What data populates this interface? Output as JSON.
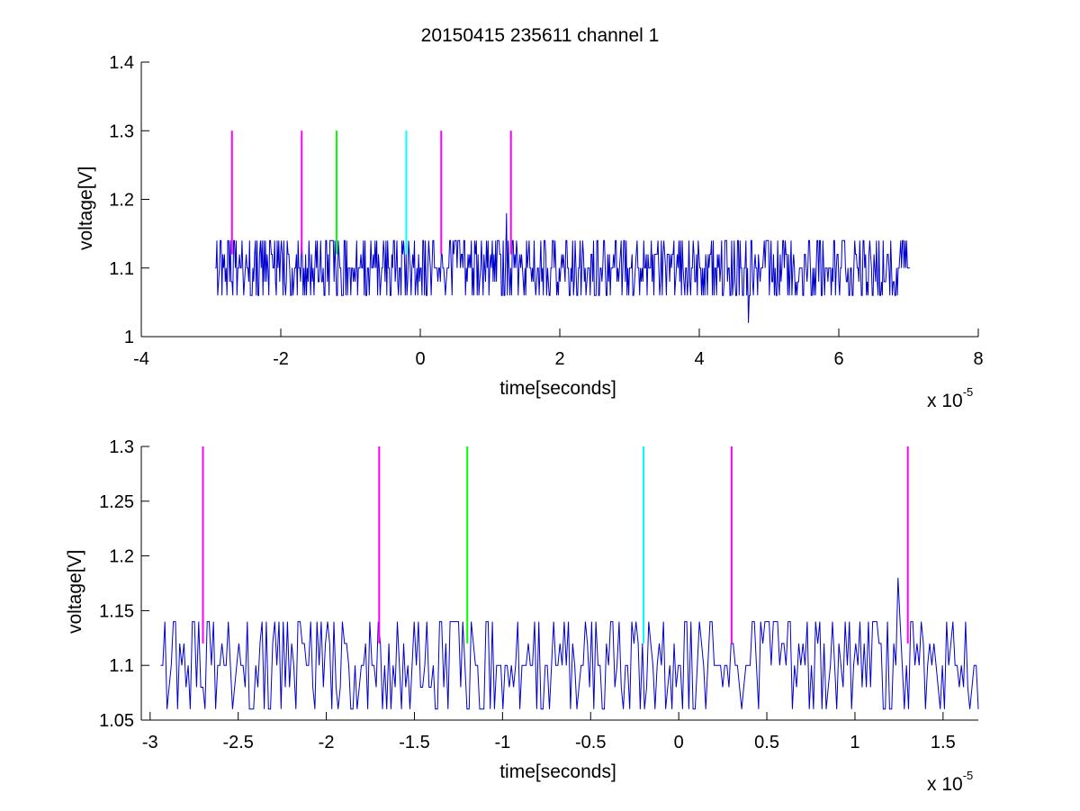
{
  "figure_title": "20150415 235611 channel 1",
  "chart_data": [
    {
      "type": "line",
      "title": "20150415 235611 channel 1",
      "xlabel": "time[seconds]",
      "ylabel": "voltage[V]",
      "x_exponent_base": "x 10",
      "x_exponent_power": "-5",
      "xlim": [
        -4,
        8
      ],
      "ylim": [
        1,
        1.4
      ],
      "xticks": [
        -4,
        -2,
        0,
        2,
        4,
        6,
        8
      ],
      "xtick_labels": [
        "-4",
        "-2",
        "0",
        "2",
        "4",
        "6",
        "8"
      ],
      "yticks": [
        1,
        1.1,
        1.2,
        1.3,
        1.4
      ],
      "ytick_labels": [
        "1",
        "1.1",
        "1.2",
        "1.3",
        "1.4"
      ],
      "grid": false,
      "signal": {
        "color": "#0000cc",
        "x_range": [
          -2.94,
          7.02
        ],
        "baseline": 1.1,
        "high": 1.14,
        "low": 1.06,
        "spikes": [
          {
            "x": 1.24,
            "y": 1.18
          },
          {
            "x": 4.7,
            "y": 1.02
          }
        ]
      },
      "markers": [
        {
          "x": -2.7,
          "y_from": 1.12,
          "y_to": 1.3,
          "color": "#ff00ff"
        },
        {
          "x": -1.7,
          "y_from": 1.12,
          "y_to": 1.3,
          "color": "#ff00ff"
        },
        {
          "x": -1.2,
          "y_from": 1.12,
          "y_to": 1.3,
          "color": "#00ff00"
        },
        {
          "x": -0.2,
          "y_from": 1.12,
          "y_to": 1.3,
          "color": "#00ffff"
        },
        {
          "x": 0.3,
          "y_from": 1.12,
          "y_to": 1.3,
          "color": "#ff00ff"
        },
        {
          "x": 1.3,
          "y_from": 1.12,
          "y_to": 1.3,
          "color": "#ff00ff"
        }
      ]
    },
    {
      "type": "line",
      "xlabel": "time[seconds]",
      "ylabel": "voltage[V]",
      "x_exponent_base": "x 10",
      "x_exponent_power": "-5",
      "xlim": [
        -3.05,
        1.7
      ],
      "ylim": [
        1.05,
        1.3
      ],
      "xticks": [
        -3,
        -2.5,
        -2,
        -1.5,
        -1,
        -0.5,
        0,
        0.5,
        1,
        1.5
      ],
      "xtick_labels": [
        "-3",
        "-2.5",
        "-2",
        "-1.5",
        "-1",
        "-0.5",
        "0",
        "0.5",
        "1",
        "1.5"
      ],
      "yticks": [
        1.05,
        1.1,
        1.15,
        1.2,
        1.25,
        1.3
      ],
      "ytick_labels": [
        "1.05",
        "1.1",
        "1.15",
        "1.2",
        "1.25",
        "1.3"
      ],
      "grid": false,
      "signal": {
        "color": "#0000cc",
        "x_range": [
          -2.94,
          1.7
        ],
        "baseline": 1.1,
        "high": 1.14,
        "low": 1.06,
        "spikes": [
          {
            "x": 1.24,
            "y": 1.18
          }
        ]
      },
      "markers": [
        {
          "x": -2.7,
          "y_from": 1.12,
          "y_to": 1.3,
          "color": "#ff00ff"
        },
        {
          "x": -1.7,
          "y_from": 1.12,
          "y_to": 1.3,
          "color": "#ff00ff"
        },
        {
          "x": -1.2,
          "y_from": 1.12,
          "y_to": 1.3,
          "color": "#00ff00"
        },
        {
          "x": -0.2,
          "y_from": 1.12,
          "y_to": 1.3,
          "color": "#00ffff"
        },
        {
          "x": 0.3,
          "y_from": 1.12,
          "y_to": 1.3,
          "color": "#ff00ff"
        },
        {
          "x": 1.3,
          "y_from": 1.12,
          "y_to": 1.3,
          "color": "#ff00ff"
        }
      ]
    }
  ]
}
